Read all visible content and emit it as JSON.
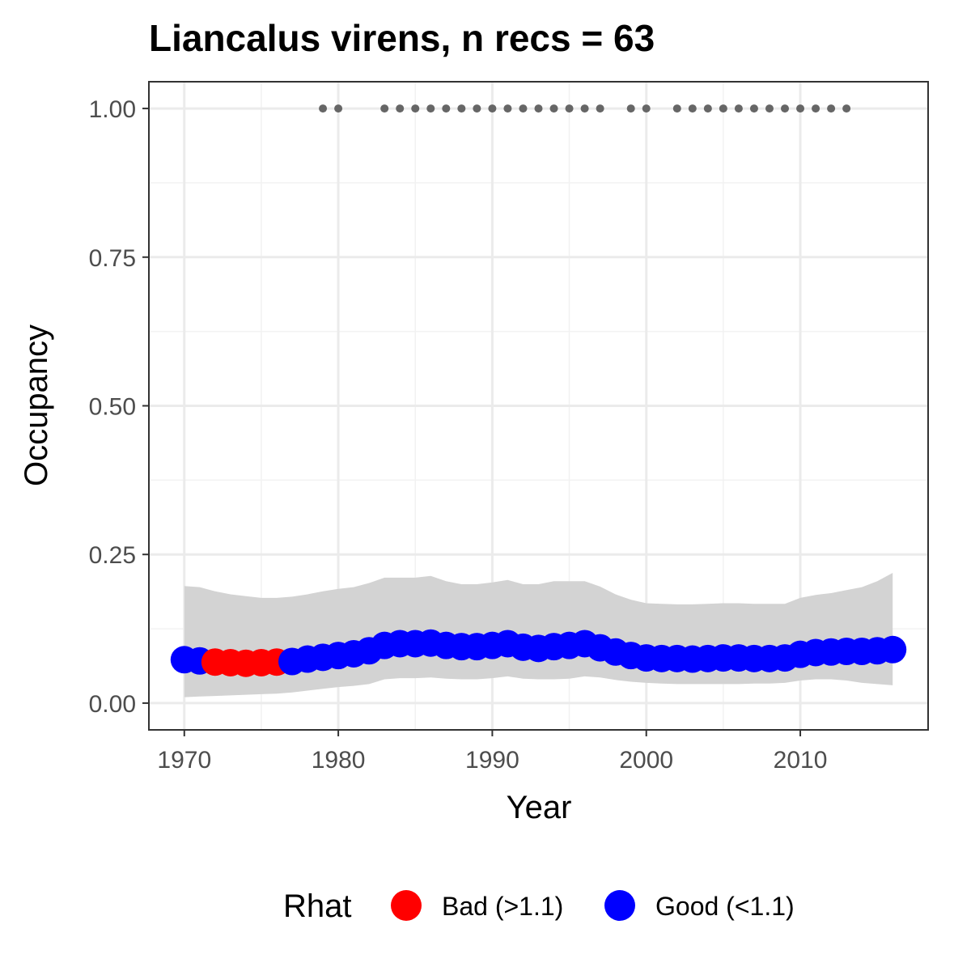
{
  "chart_data": {
    "type": "line",
    "title": "Liancalus virens, n recs = 63",
    "xlabel": "Year",
    "ylabel": "Occupancy",
    "xlim": [
      1967.7,
      2018.3
    ],
    "ylim": [
      -0.045,
      1.045
    ],
    "x_ticks": [
      1970,
      1980,
      1990,
      2000,
      2010
    ],
    "x_tick_labels": [
      "1970",
      "1980",
      "1990",
      "2000",
      "2010"
    ],
    "y_ticks": [
      0,
      0.25,
      0.5,
      0.75,
      1.0
    ],
    "y_tick_labels": [
      "0.00",
      "0.25",
      "0.50",
      "0.75",
      "1.00"
    ],
    "grid": true,
    "legend": {
      "title": "Rhat",
      "position": "bottom",
      "entries": [
        {
          "label": "Bad (>1.1)",
          "color": "#ff0000"
        },
        {
          "label": "Good (<1.1)",
          "color": "#0000ff"
        }
      ]
    },
    "colors": {
      "bad": "#ff0000",
      "good": "#0000ff",
      "ribbon": "#d3d3d3",
      "records": "#666666"
    },
    "series": [
      {
        "type": "ribbon",
        "x": [
          1970,
          1971,
          1972,
          1973,
          1974,
          1975,
          1976,
          1977,
          1978,
          1979,
          1980,
          1981,
          1982,
          1983,
          1984,
          1985,
          1986,
          1987,
          1988,
          1989,
          1990,
          1991,
          1992,
          1993,
          1994,
          1995,
          1996,
          1997,
          1998,
          1999,
          2000,
          2001,
          2002,
          2003,
          2004,
          2005,
          2006,
          2007,
          2008,
          2009,
          2010,
          2011,
          2012,
          2013,
          2014,
          2015,
          2016
        ],
        "lower": [
          0.01,
          0.011,
          0.012,
          0.013,
          0.014,
          0.015,
          0.016,
          0.018,
          0.021,
          0.024,
          0.027,
          0.029,
          0.032,
          0.04,
          0.042,
          0.042,
          0.043,
          0.041,
          0.04,
          0.04,
          0.042,
          0.045,
          0.041,
          0.04,
          0.04,
          0.041,
          0.045,
          0.043,
          0.039,
          0.036,
          0.034,
          0.033,
          0.032,
          0.032,
          0.032,
          0.032,
          0.032,
          0.033,
          0.033,
          0.034,
          0.038,
          0.04,
          0.04,
          0.038,
          0.034,
          0.032,
          0.03
        ],
        "upper": [
          0.197,
          0.195,
          0.188,
          0.183,
          0.18,
          0.177,
          0.177,
          0.179,
          0.183,
          0.188,
          0.192,
          0.195,
          0.202,
          0.211,
          0.211,
          0.211,
          0.214,
          0.205,
          0.2,
          0.2,
          0.203,
          0.207,
          0.2,
          0.2,
          0.205,
          0.205,
          0.205,
          0.196,
          0.183,
          0.174,
          0.168,
          0.167,
          0.166,
          0.166,
          0.167,
          0.168,
          0.168,
          0.167,
          0.167,
          0.167,
          0.177,
          0.182,
          0.185,
          0.19,
          0.195,
          0.205,
          0.219
        ]
      },
      {
        "type": "points",
        "x": [
          1970,
          1971,
          1972,
          1973,
          1974,
          1975,
          1976,
          1977,
          1978,
          1979,
          1980,
          1981,
          1982,
          1983,
          1984,
          1985,
          1986,
          1987,
          1988,
          1989,
          1990,
          1991,
          1992,
          1993,
          1994,
          1995,
          1996,
          1997,
          1998,
          1999,
          2000,
          2001,
          2002,
          2003,
          2004,
          2005,
          2006,
          2007,
          2008,
          2009,
          2010,
          2011,
          2012,
          2013,
          2014,
          2015,
          2016
        ],
        "y": [
          0.073,
          0.071,
          0.069,
          0.068,
          0.067,
          0.068,
          0.069,
          0.07,
          0.074,
          0.077,
          0.08,
          0.083,
          0.088,
          0.097,
          0.1,
          0.1,
          0.101,
          0.097,
          0.095,
          0.095,
          0.097,
          0.1,
          0.094,
          0.092,
          0.095,
          0.097,
          0.1,
          0.093,
          0.086,
          0.08,
          0.076,
          0.075,
          0.075,
          0.074,
          0.075,
          0.076,
          0.076,
          0.075,
          0.075,
          0.076,
          0.082,
          0.085,
          0.086,
          0.087,
          0.087,
          0.088,
          0.09
        ],
        "rhat": [
          "good",
          "good",
          "bad",
          "bad",
          "bad",
          "bad",
          "bad",
          "good",
          "good",
          "good",
          "good",
          "good",
          "good",
          "good",
          "good",
          "good",
          "good",
          "good",
          "good",
          "good",
          "good",
          "good",
          "good",
          "good",
          "good",
          "good",
          "good",
          "good",
          "good",
          "good",
          "good",
          "good",
          "good",
          "good",
          "good",
          "good",
          "good",
          "good",
          "good",
          "good",
          "good",
          "good",
          "good",
          "good",
          "good",
          "good",
          "good"
        ]
      },
      {
        "type": "records",
        "x": [
          1979,
          1980,
          1983,
          1984,
          1985,
          1986,
          1987,
          1988,
          1989,
          1990,
          1991,
          1992,
          1993,
          1994,
          1995,
          1996,
          1997,
          1999,
          2000,
          2002,
          2003,
          2004,
          2005,
          2006,
          2007,
          2008,
          2009,
          2010,
          2011,
          2012,
          2013
        ],
        "y": 1.0
      }
    ]
  }
}
